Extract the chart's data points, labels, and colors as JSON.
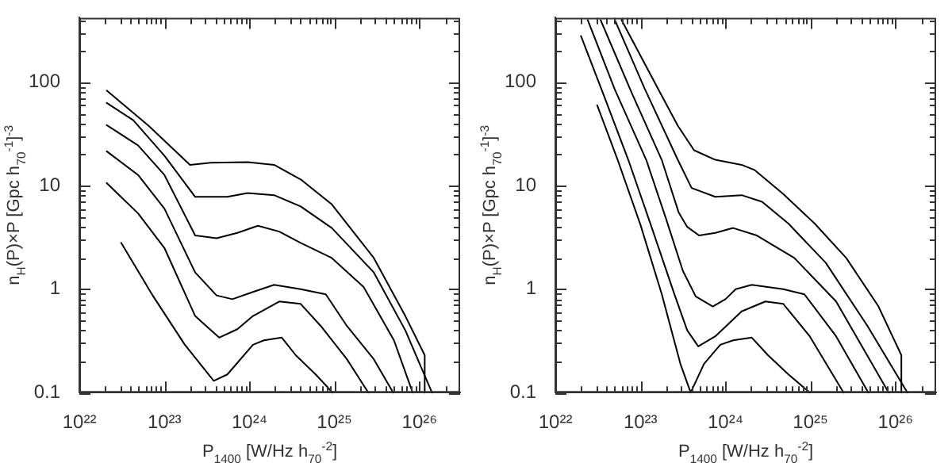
{
  "chart_data": [
    {
      "type": "line",
      "xlabel": "P$_{1400}$ [W/Hz h$_{70}$$^{-2}$]",
      "ylabel": "n$_{H}$(P)×P [Gpc h$_{70}$$^{-1}$]$^{-3}$",
      "log": "xy",
      "xlim": [
        1e+22,
        3e+26
      ],
      "ylim": [
        0.1,
        420
      ],
      "xticks": [
        {
          "value": 1e+22,
          "label": "10²²"
        },
        {
          "value": 2e+22,
          "label": null
        },
        {
          "value": 3e+22,
          "label": null
        },
        {
          "value": 4e+22,
          "label": null
        },
        {
          "value": 5e+22,
          "label": null
        },
        {
          "value": 6e+22,
          "label": null
        },
        {
          "value": 7e+22,
          "label": null
        },
        {
          "value": 8e+22,
          "label": null
        },
        {
          "value": 9e+22,
          "label": null
        },
        {
          "value": 1e+23,
          "label": "10²³"
        },
        {
          "value": 2e+23,
          "label": null
        },
        {
          "value": 3e+23,
          "label": null
        },
        {
          "value": 4e+23,
          "label": null
        },
        {
          "value": 5e+23,
          "label": null
        },
        {
          "value": 6e+23,
          "label": null
        },
        {
          "value": 7e+23,
          "label": null
        },
        {
          "value": 8e+23,
          "label": null
        },
        {
          "value": 9e+23,
          "label": null
        },
        {
          "value": 1e+24,
          "label": "10²⁴"
        },
        {
          "value": 2e+24,
          "label": null
        },
        {
          "value": 3e+24,
          "label": null
        },
        {
          "value": 4e+24,
          "label": null
        },
        {
          "value": 5e+24,
          "label": null
        },
        {
          "value": 6e+24,
          "label": null
        },
        {
          "value": 7e+24,
          "label": null
        },
        {
          "value": 8e+24,
          "label": null
        },
        {
          "value": 9e+24,
          "label": null
        },
        {
          "value": 1e+25,
          "label": "10²⁵"
        },
        {
          "value": 2e+25,
          "label": null
        },
        {
          "value": 3e+25,
          "label": null
        },
        {
          "value": 4e+25,
          "label": null
        },
        {
          "value": 5e+25,
          "label": null
        },
        {
          "value": 6e+25,
          "label": null
        },
        {
          "value": 7e+25,
          "label": null
        },
        {
          "value": 8e+25,
          "label": null
        },
        {
          "value": 9e+25,
          "label": null
        },
        {
          "value": 1e+26,
          "label": "10²⁶"
        },
        {
          "value": 2e+26,
          "label": null
        }
      ],
      "yticks": [
        0.1,
        {
          "value": 0.2,
          "label": null
        },
        {
          "value": 0.3,
          "label": null
        },
        {
          "value": 0.4,
          "label": null
        },
        {
          "value": 0.5,
          "label": null
        },
        {
          "value": 0.6,
          "label": null
        },
        {
          "value": 0.7,
          "label": null
        },
        {
          "value": 0.8,
          "label": null
        },
        {
          "value": 0.9,
          "label": null
        },
        1,
        {
          "value": 2,
          "label": null
        },
        {
          "value": 3,
          "label": null
        },
        {
          "value": 4,
          "label": null
        },
        {
          "value": 5,
          "label": null
        },
        {
          "value": 6,
          "label": null
        },
        {
          "value": 7,
          "label": null
        },
        {
          "value": 8,
          "label": null
        },
        {
          "value": 9,
          "label": null
        },
        10,
        {
          "value": 20,
          "label": null
        },
        {
          "value": 30,
          "label": null
        },
        {
          "value": 40,
          "label": null
        },
        {
          "value": 50,
          "label": null
        },
        {
          "value": 60,
          "label": null
        },
        {
          "value": 70,
          "label": null
        },
        {
          "value": 80,
          "label": null
        },
        {
          "value": 90,
          "label": null
        },
        100,
        {
          "value": 200,
          "label": null
        },
        {
          "value": 300,
          "label": null
        },
        {
          "value": 400,
          "label": null
        }
      ],
      "series": [
        {
          "color": "#000000",
          "x": [
            2.1e+22,
            6.5e+22,
            2e+23,
            3.5e+23,
            9.5e+23,
            1.95e+24,
            4e+24,
            9.3e+24,
            2.9e+25,
            6.8e+25,
            1.15e+26,
            1.15e+26
          ],
          "values": [
            83,
            38,
            15.9,
            16.7,
            16.9,
            15.9,
            11.5,
            6.6,
            2.0,
            0.55,
            0.23,
            0.1
          ]
        },
        {
          "color": "#000000",
          "x": [
            2.1e+22,
            4.3e+22,
            1e+23,
            2.3e+23,
            5.5e+23,
            9.5e+23,
            1.95e+24,
            4e+24,
            9.3e+24,
            2.9e+25,
            6.8e+25,
            1.4e+26
          ],
          "values": [
            63,
            43,
            19.5,
            7.8,
            7.8,
            8.5,
            8.1,
            6.3,
            3.9,
            1.45,
            0.4,
            0.1
          ]
        },
        {
          "color": "#000000",
          "x": [
            2.1e+22,
            4.9e+22,
            1e+23,
            2.3e+23,
            4.1e+23,
            7.2e+23,
            1.26e+24,
            2.24e+24,
            4e+24,
            9.3e+24,
            2.2e+25,
            5e+25,
            8.3e+25
          ],
          "values": [
            38.5,
            24.5,
            12.7,
            3.3,
            3.1,
            3.5,
            4.1,
            3.6,
            2.8,
            2.0,
            1.05,
            0.32,
            0.1
          ]
        },
        {
          "color": "#000000",
          "x": [
            2.1e+22,
            4.9e+22,
            1e+23,
            2.3e+23,
            4.1e+23,
            6.3e+23,
            1.1e+24,
            1.95e+24,
            4e+24,
            7.9e+24,
            1.4e+25,
            2.9e+25,
            4.9e+25
          ],
          "values": [
            21.5,
            12.7,
            6.0,
            1.45,
            0.87,
            0.8,
            0.94,
            1.1,
            1.0,
            0.89,
            0.44,
            0.21,
            0.1
          ]
        },
        {
          "color": "#000000",
          "x": [
            2.1e+22,
            4.9e+22,
            1e+23,
            2.3e+23,
            4.4e+23,
            7.2e+23,
            1.1e+24,
            2.24e+24,
            4e+24,
            6.9e+24,
            1.4e+25,
            2.5e+25
          ],
          "values": [
            10.6,
            5.4,
            2.5,
            0.55,
            0.34,
            0.41,
            0.55,
            0.76,
            0.72,
            0.44,
            0.21,
            0.1
          ]
        },
        {
          "color": "#000000",
          "x": [
            3.1e+22,
            7.4e+22,
            1.74e+23,
            3.8e+23,
            5.5e+23,
            1.1e+24,
            1.48e+24,
            2.4e+24,
            3.5e+24,
            6e+24,
            9.5e+24
          ],
          "values": [
            2.8,
            0.85,
            0.29,
            0.13,
            0.15,
            0.29,
            0.32,
            0.34,
            0.23,
            0.15,
            0.1
          ]
        }
      ]
    },
    {
      "type": "line",
      "xlabel": "P$_{1400}$ [W/Hz h$_{70}$$^{-2}$]",
      "ylabel": "n$_{H}$(P)×P [Gpc h$_{70}$$^{-1}$]$^{-3}$",
      "log": "xy",
      "xlim": [
        1e+22,
        3e+26
      ],
      "ylim": [
        0.1,
        420
      ],
      "xticks": [
        {
          "value": 1e+22,
          "label": "10²²"
        },
        {
          "value": 2e+22,
          "label": null
        },
        {
          "value": 3e+22,
          "label": null
        },
        {
          "value": 4e+22,
          "label": null
        },
        {
          "value": 5e+22,
          "label": null
        },
        {
          "value": 6e+22,
          "label": null
        },
        {
          "value": 7e+22,
          "label": null
        },
        {
          "value": 8e+22,
          "label": null
        },
        {
          "value": 9e+22,
          "label": null
        },
        {
          "value": 1e+23,
          "label": "10²³"
        },
        {
          "value": 2e+23,
          "label": null
        },
        {
          "value": 3e+23,
          "label": null
        },
        {
          "value": 4e+23,
          "label": null
        },
        {
          "value": 5e+23,
          "label": null
        },
        {
          "value": 6e+23,
          "label": null
        },
        {
          "value": 7e+23,
          "label": null
        },
        {
          "value": 8e+23,
          "label": null
        },
        {
          "value": 9e+23,
          "label": null
        },
        {
          "value": 1e+24,
          "label": "10²⁴"
        },
        {
          "value": 2e+24,
          "label": null
        },
        {
          "value": 3e+24,
          "label": null
        },
        {
          "value": 4e+24,
          "label": null
        },
        {
          "value": 5e+24,
          "label": null
        },
        {
          "value": 6e+24,
          "label": null
        },
        {
          "value": 7e+24,
          "label": null
        },
        {
          "value": 8e+24,
          "label": null
        },
        {
          "value": 9e+24,
          "label": null
        },
        {
          "value": 1e+25,
          "label": "10²⁵"
        },
        {
          "value": 2e+25,
          "label": null
        },
        {
          "value": 3e+25,
          "label": null
        },
        {
          "value": 4e+25,
          "label": null
        },
        {
          "value": 5e+25,
          "label": null
        },
        {
          "value": 6e+25,
          "label": null
        },
        {
          "value": 7e+25,
          "label": null
        },
        {
          "value": 8e+25,
          "label": null
        },
        {
          "value": 9e+25,
          "label": null
        },
        {
          "value": 1e+26,
          "label": "10²⁶"
        },
        {
          "value": 2e+26,
          "label": null
        }
      ],
      "yticks": [
        0.1,
        {
          "value": 0.2,
          "label": null
        },
        {
          "value": 0.3,
          "label": null
        },
        {
          "value": 0.4,
          "label": null
        },
        {
          "value": 0.5,
          "label": null
        },
        {
          "value": 0.6,
          "label": null
        },
        {
          "value": 0.7,
          "label": null
        },
        {
          "value": 0.8,
          "label": null
        },
        {
          "value": 0.9,
          "label": null
        },
        1,
        {
          "value": 2,
          "label": null
        },
        {
          "value": 3,
          "label": null
        },
        {
          "value": 4,
          "label": null
        },
        {
          "value": 5,
          "label": null
        },
        {
          "value": 6,
          "label": null
        },
        {
          "value": 7,
          "label": null
        },
        {
          "value": 8,
          "label": null
        },
        {
          "value": 9,
          "label": null
        },
        10,
        {
          "value": 20,
          "label": null
        },
        {
          "value": 30,
          "label": null
        },
        {
          "value": 40,
          "label": null
        },
        {
          "value": 50,
          "label": null
        },
        {
          "value": 60,
          "label": null
        },
        {
          "value": 70,
          "label": null
        },
        {
          "value": 80,
          "label": null
        },
        {
          "value": 90,
          "label": null
        },
        100,
        {
          "value": 200,
          "label": null
        },
        {
          "value": 300,
          "label": null
        },
        {
          "value": 400,
          "label": null
        }
      ],
      "series": [
        {
          "color": "#000000",
          "x": [
            6e+22,
            1.58e+23,
            2.75e+23,
            4.27e+23,
            7.6e+23,
            1.55e+24,
            2.19e+24,
            4.79e+24,
            1.12e+25,
            2.63e+25,
            6.3e+25,
            1.17e+26,
            1.17e+26
          ],
          "values": [
            400,
            89,
            38,
            22,
            17.8,
            15.9,
            14.2,
            8.3,
            4.3,
            2.0,
            0.68,
            0.23,
            0.1
          ]
        },
        {
          "color": "#000000",
          "x": [
            5e+22,
            1.12e+23,
            2.75e+23,
            4e+23,
            7.6e+23,
            1.55e+24,
            2.69e+24,
            5.5e+24,
            1.51e+25,
            4.68e+25,
            1.38e+26
          ],
          "values": [
            400,
            87,
            17.8,
            9.5,
            7.8,
            8.1,
            7.0,
            4.3,
            1.8,
            0.44,
            0.1
          ]
        },
        {
          "color": "#000000",
          "x": [
            3.4e+22,
            7.9e+22,
            1.78e+23,
            2.82e+23,
            3.55e+23,
            4.9e+23,
            7.6e+23,
            1.23e+24,
            2.34e+24,
            6.46e+24,
            2e+25,
            8.3e+25
          ],
          "values": [
            400,
            79,
            17.8,
            5.5,
            4.0,
            3.3,
            3.5,
            3.9,
            3.3,
            2.0,
            0.76,
            0.1
          ]
        },
        {
          "color": "#000000",
          "x": [
            2.4e+22,
            5e+22,
            1.17e+23,
            2e+23,
            3.16e+23,
            4.47e+23,
            7.1e+23,
            1e+24,
            1.32e+24,
            2.04e+24,
            4.79e+24,
            8.5e+24,
            2e+25,
            4.79e+25
          ],
          "values": [
            400,
            85,
            17.8,
            4.8,
            1.5,
            0.85,
            0.68,
            0.8,
            1.0,
            1.1,
            1.0,
            0.89,
            0.35,
            0.1
          ]
        },
        {
          "color": "#000000",
          "x": [
            2e+22,
            3.8e+22,
            7.2e+22,
            1.35e+23,
            2.5e+23,
            3.55e+23,
            4.79e+23,
            7.6e+23,
            1.55e+24,
            2.95e+24,
            4.79e+24,
            9.8e+24,
            2.45e+25
          ],
          "values": [
            280,
            71,
            17.8,
            4.0,
            0.9,
            0.4,
            0.28,
            0.35,
            0.61,
            0.76,
            0.72,
            0.35,
            0.1
          ]
        },
        {
          "color": "#000000",
          "x": [
            3.1e+22,
            5.4e+22,
            1e+23,
            1.78e+23,
            2.95e+23,
            3.9e+23,
            5.6e+23,
            8.7e+23,
            1.23e+24,
            2.04e+24,
            3.16e+24,
            5.5e+24,
            9.8e+24
          ],
          "values": [
            60,
            17.8,
            4.2,
            0.9,
            0.19,
            0.1,
            0.19,
            0.29,
            0.32,
            0.34,
            0.23,
            0.15,
            0.1
          ]
        }
      ]
    }
  ]
}
